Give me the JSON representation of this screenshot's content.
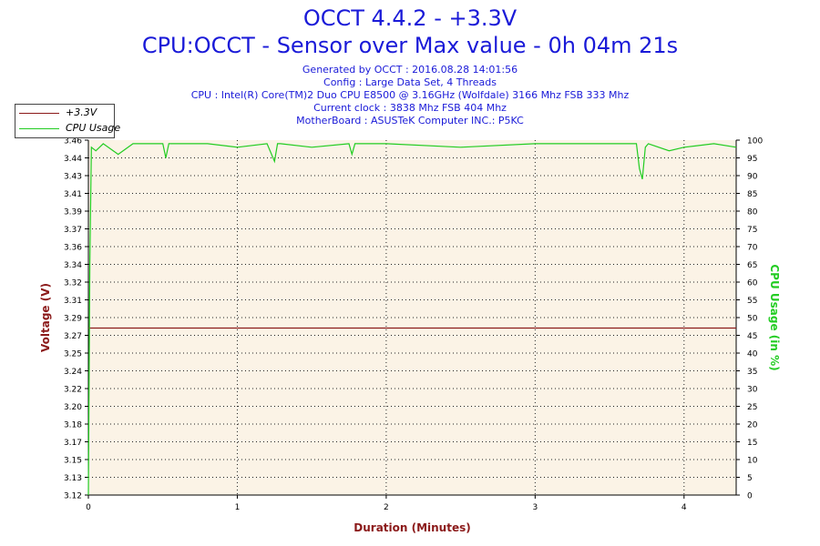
{
  "header": {
    "title": "OCCT 4.4.2 - +3.3V",
    "subtitle": "CPU:OCCT - Sensor over Max value - 0h 04m 21s",
    "info_lines": [
      "Generated by OCCT : 2016.08.28 14:01:56",
      "Config : Large Data Set, 4 Threads",
      "CPU : Intel(R) Core(TM)2 Duo CPU E8500 @ 3.16GHz (Wolfdale) 3166 Mhz FSB 333 Mhz",
      "Current clock : 3838 Mhz FSB 404 Mhz",
      "MotherBoard : ASUSTeK Computer INC.: P5KC"
    ]
  },
  "legend": {
    "items": [
      {
        "label": "+3.3V",
        "color": "#8b1a1a"
      },
      {
        "label": "CPU Usage",
        "color": "#22cc22"
      }
    ]
  },
  "chart_data": {
    "type": "line",
    "xlabel": "Duration (Minutes)",
    "ylabel": "Voltage (V)",
    "y2label": "CPU Usage (in %)",
    "xlim": [
      0,
      4.35
    ],
    "x_ticks": [
      "0",
      "1",
      "2",
      "3",
      "4"
    ],
    "ylim": [
      3.12,
      3.46
    ],
    "y_ticks": [
      "3.12",
      "3.13",
      "3.15",
      "3.17",
      "3.18",
      "3.20",
      "3.22",
      "3.24",
      "3.25",
      "3.27",
      "3.29",
      "3.31",
      "3.32",
      "3.34",
      "3.36",
      "3.37",
      "3.39",
      "3.41",
      "3.43",
      "3.44",
      "3.46"
    ],
    "y2lim": [
      0,
      100
    ],
    "y2_ticks": [
      "0",
      "5",
      "10",
      "15",
      "20",
      "25",
      "30",
      "35",
      "40",
      "45",
      "50",
      "55",
      "60",
      "65",
      "70",
      "75",
      "80",
      "85",
      "90",
      "95",
      "100"
    ],
    "grid": true,
    "series": [
      {
        "name": "+3.3V",
        "axis": "left",
        "color": "#8b1a1a",
        "x": [
          0,
          4.35
        ],
        "y": [
          3.28,
          3.28
        ]
      },
      {
        "name": "CPU Usage",
        "axis": "right",
        "color": "#22cc22",
        "x": [
          0,
          0.01,
          0.02,
          0.05,
          0.1,
          0.2,
          0.3,
          0.5,
          0.52,
          0.54,
          0.8,
          1.0,
          1.2,
          1.25,
          1.27,
          1.29,
          1.5,
          1.75,
          1.77,
          1.79,
          2.0,
          2.5,
          3.0,
          3.5,
          3.68,
          3.7,
          3.72,
          3.74,
          3.76,
          3.9,
          4.0,
          4.2,
          4.35
        ],
        "y": [
          0,
          65,
          98,
          97,
          99,
          96,
          99,
          99,
          95,
          99,
          99,
          98,
          99,
          94,
          99,
          99,
          98,
          99,
          96,
          99,
          99,
          98,
          99,
          99,
          99,
          92,
          89,
          98,
          99,
          97,
          98,
          99,
          98
        ]
      }
    ]
  }
}
